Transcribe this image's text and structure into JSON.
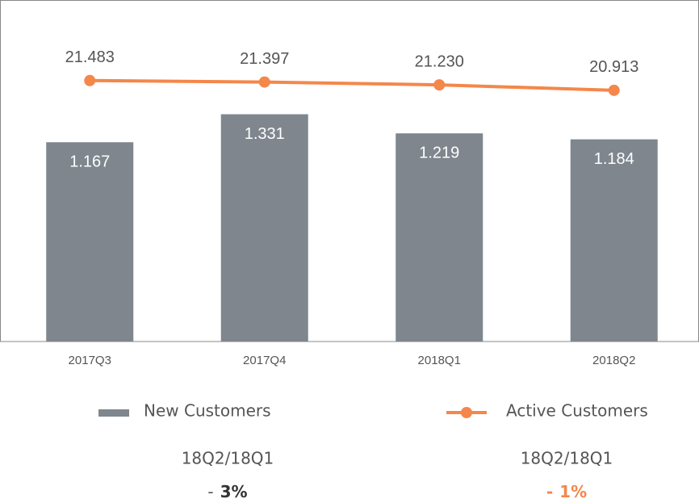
{
  "chart_data": {
    "type": "bar_line",
    "categories": [
      "2017Q3",
      "2017Q4",
      "2018Q1",
      "2018Q2"
    ],
    "series": [
      {
        "name": "New Customers",
        "type": "bar",
        "color": "#7f868e",
        "values": [
          1.167,
          1.331,
          1.219,
          1.184
        ]
      },
      {
        "name": "Active Customers",
        "type": "line",
        "axis": "y2",
        "color": "#f4874b",
        "values": [
          21.483,
          21.397,
          21.23,
          20.913
        ],
        "value_labels": [
          "21.483",
          "21.397",
          "21.230",
          "20.913"
        ]
      }
    ],
    "ylim": [
      0,
      2
    ],
    "y2lim": [
      6.2,
      26.2
    ],
    "annotations": [
      {
        "period": "18Q2/18Q1",
        "sign": "-",
        "change": "3%"
      },
      {
        "period": "18Q2/18Q1",
        "sign": "-",
        "change": "1%"
      }
    ]
  }
}
